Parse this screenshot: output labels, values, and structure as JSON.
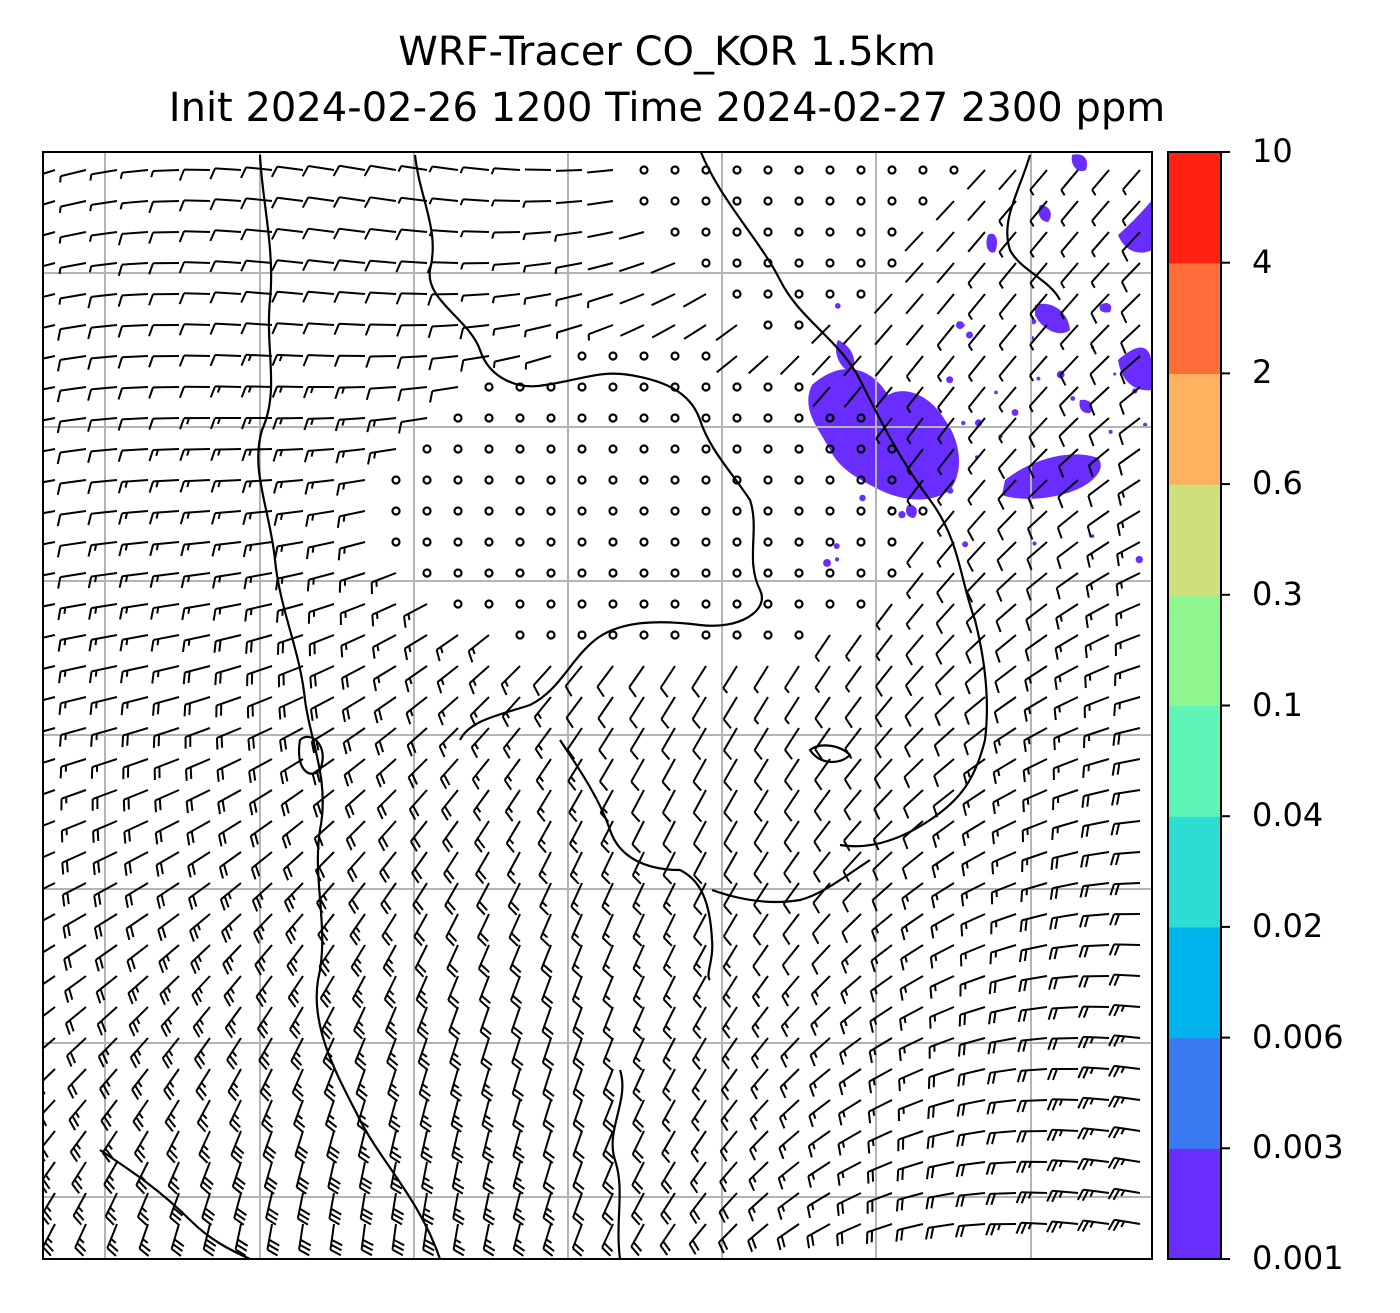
{
  "title": {
    "line1": "WRF-Tracer CO_KOR 1.5km",
    "line2": "Init 2024-02-26 1200 Time 2024-02-27 2300 ppm"
  },
  "colorbar": {
    "levels": [
      "0.001",
      "0.003",
      "0.006",
      "0.02",
      "0.04",
      "0.1",
      "0.3",
      "0.6",
      "2",
      "4",
      "10"
    ],
    "colors": [
      "#6a2dff",
      "#3a7bf2",
      "#00b3eb",
      "#2ddcd3",
      "#5ff5b8",
      "#90f690",
      "#cde07c",
      "#feb15e",
      "#ff6d39",
      "#ff2213"
    ]
  },
  "map": {
    "tracer_color": "#6a2dff",
    "gridline_color": "#b4b4b4",
    "barb_color": "#000000"
  }
}
